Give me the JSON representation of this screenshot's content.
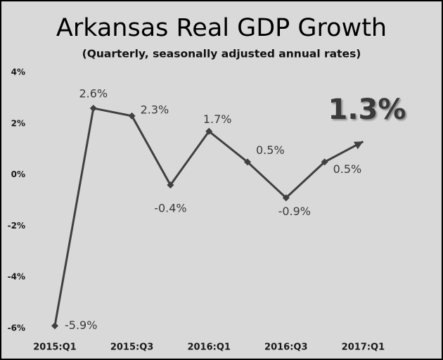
{
  "chart_data": {
    "type": "line",
    "title": "Arkansas Real GDP Growth",
    "subtitle": "(Quarterly, seasonally adjusted annual rates)",
    "categories": [
      "2015:Q1",
      null,
      "2015:Q3",
      null,
      "2016:Q1",
      null,
      "2016:Q3",
      null,
      "2017:Q1"
    ],
    "values": [
      -5.9,
      2.6,
      2.3,
      -0.4,
      1.7,
      0.5,
      -0.9,
      0.5,
      1.3
    ],
    "value_labels": [
      "-5.9%",
      "2.6%",
      "2.3%",
      "-0.4%",
      "1.7%",
      "0.5%",
      "-0.9%",
      "0.5%",
      "1.3%"
    ],
    "color": "#404040",
    "ylim": [
      -6,
      4
    ],
    "yticks": [
      {
        "value": -6,
        "label": "-6%"
      },
      {
        "value": -4,
        "label": "-4%"
      },
      {
        "value": -2,
        "label": "-2%"
      },
      {
        "value": 0,
        "label": "0%"
      },
      {
        "value": 2,
        "label": "2%"
      },
      {
        "value": 4,
        "label": "4%"
      }
    ],
    "grid": false
  }
}
